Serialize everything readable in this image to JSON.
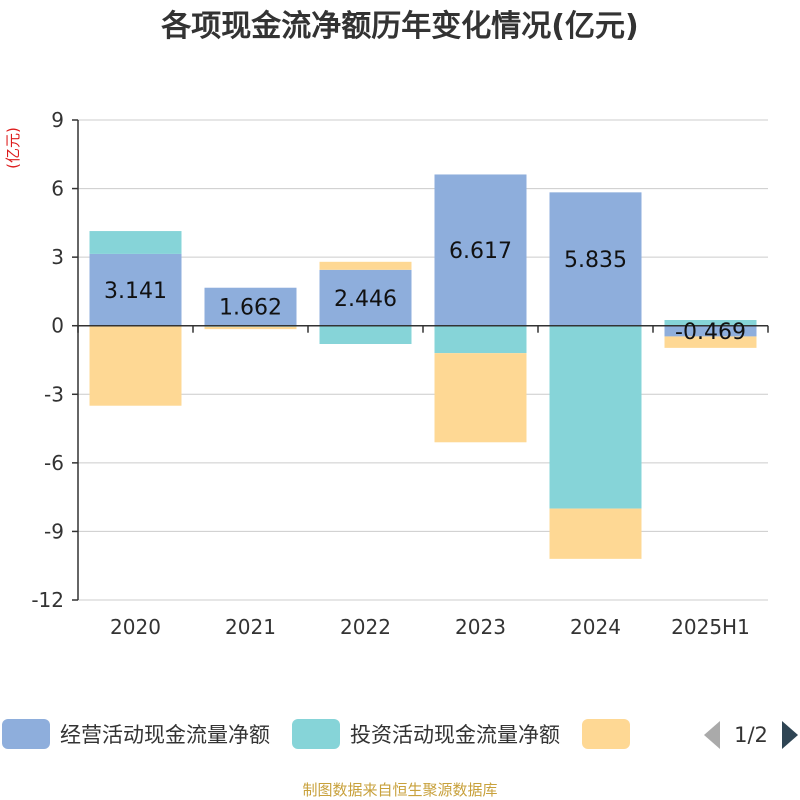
{
  "title": "各项现金流净额历年变化情况(亿元)",
  "unit_label": "(亿元)",
  "source": "制图数据来自恒生聚源数据库",
  "legend_pager": "1/2",
  "colors": {
    "operating": "#8eaedc",
    "investing": "#86d4d8",
    "financing": "#fed894",
    "grid": "#cccccc",
    "axis": "#333333"
  },
  "chart_data": {
    "type": "bar",
    "stacked": true,
    "categories": [
      "2020",
      "2021",
      "2022",
      "2023",
      "2024",
      "2025H1"
    ],
    "series": [
      {
        "name": "经营活动现金流量净额",
        "color_key": "operating",
        "values": [
          3.141,
          1.662,
          2.446,
          6.617,
          5.835,
          -0.469
        ]
      },
      {
        "name": "投资活动现金流量净额",
        "color_key": "investing",
        "values": [
          1.0,
          -0.05,
          -0.8,
          -1.2,
          -8.0,
          0.25
        ]
      },
      {
        "name": "",
        "color_key": "financing",
        "values": [
          -3.5,
          -0.1,
          0.35,
          -3.9,
          -2.2,
          -0.5
        ]
      }
    ],
    "data_labels": [
      "3.141",
      "1.662",
      "2.446",
      "6.617",
      "5.835",
      "-0.469"
    ],
    "ylim": [
      -12,
      9
    ],
    "yticks": [
      9,
      6,
      3,
      0,
      -3,
      -6,
      -9,
      -12
    ],
    "ytick_labels": [
      "9",
      "6",
      "3",
      "0",
      "-3",
      "-6",
      "-9",
      "-12"
    ],
    "grid": true,
    "legend_position": "bottom"
  }
}
